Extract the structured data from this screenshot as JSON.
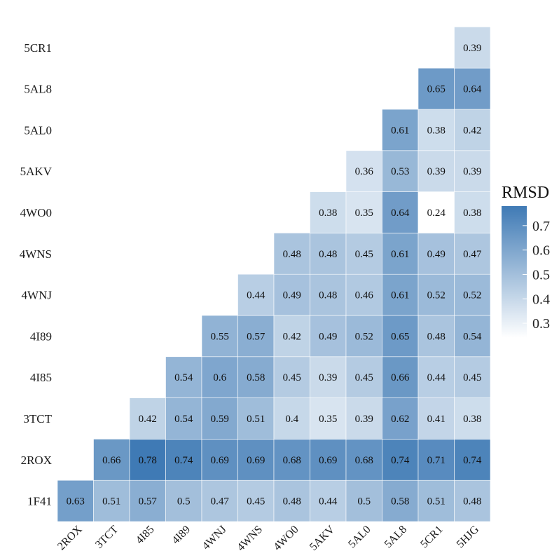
{
  "chart_data": {
    "type": "heatmap",
    "x_labels": [
      "2ROX",
      "3TCT",
      "4I85",
      "4I89",
      "4WNJ",
      "4WNS",
      "4WO0",
      "5AKV",
      "5AL0",
      "5AL8",
      "5CR1",
      "5HJG"
    ],
    "y_labels": [
      "1F41",
      "2ROX",
      "3TCT",
      "4I85",
      "4I89",
      "4WNJ",
      "4WNS",
      "4WO0",
      "5AKV",
      "5AL0",
      "5AL8",
      "5CR1"
    ],
    "values": [
      [
        0.63,
        0.51,
        0.57,
        0.5,
        0.47,
        0.45,
        0.48,
        0.44,
        0.5,
        0.58,
        0.51,
        0.48
      ],
      [
        null,
        0.66,
        0.78,
        0.74,
        0.69,
        0.69,
        0.68,
        0.69,
        0.68,
        0.74,
        0.71,
        0.74
      ],
      [
        null,
        null,
        0.42,
        0.54,
        0.59,
        0.51,
        0.4,
        0.35,
        0.39,
        0.62,
        0.41,
        0.38
      ],
      [
        null,
        null,
        null,
        0.54,
        0.6,
        0.58,
        0.45,
        0.39,
        0.45,
        0.66,
        0.44,
        0.45
      ],
      [
        null,
        null,
        null,
        null,
        0.55,
        0.57,
        0.42,
        0.49,
        0.52,
        0.65,
        0.48,
        0.54
      ],
      [
        null,
        null,
        null,
        null,
        null,
        0.44,
        0.49,
        0.48,
        0.46,
        0.61,
        0.52,
        0.52
      ],
      [
        null,
        null,
        null,
        null,
        null,
        null,
        0.48,
        0.48,
        0.45,
        0.61,
        0.49,
        0.47
      ],
      [
        null,
        null,
        null,
        null,
        null,
        null,
        null,
        0.38,
        0.35,
        0.64,
        0.24,
        0.38
      ],
      [
        null,
        null,
        null,
        null,
        null,
        null,
        null,
        null,
        0.36,
        0.53,
        0.39,
        0.39
      ],
      [
        null,
        null,
        null,
        null,
        null,
        null,
        null,
        null,
        null,
        0.61,
        0.38,
        0.42
      ],
      [
        null,
        null,
        null,
        null,
        null,
        null,
        null,
        null,
        null,
        null,
        0.65,
        0.64
      ],
      [
        null,
        null,
        null,
        null,
        null,
        null,
        null,
        null,
        null,
        null,
        null,
        0.39
      ]
    ],
    "color_range": [
      0.24,
      0.78
    ],
    "color_low": "#ffffff",
    "color_high": "#3f7ab5",
    "legend": {
      "title": "RMSD",
      "ticks": [
        "0.3",
        "0.4",
        "0.5",
        "0.6",
        "0.7"
      ],
      "tick_values": [
        0.3,
        0.4,
        0.5,
        0.6,
        0.7
      ],
      "position": "right"
    }
  }
}
